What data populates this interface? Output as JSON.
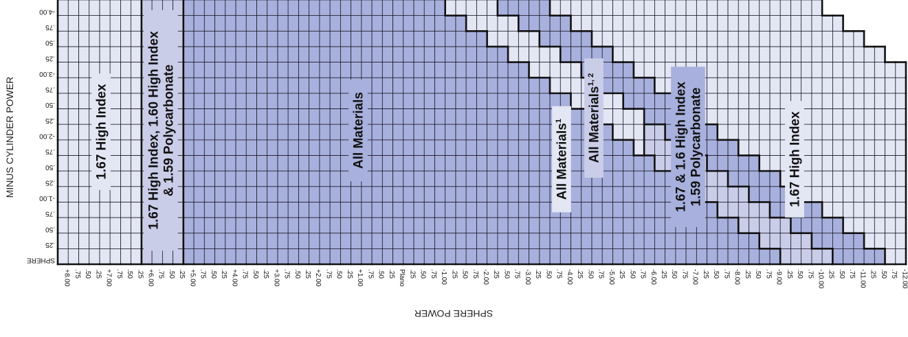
{
  "chart_data": {
    "type": "heatmap",
    "title": "",
    "xlabel": "SPHERE POWER",
    "ylabel": "MINUS CYLINDER POWER",
    "x_ticks": [
      "+8.00",
      ".75",
      ".50",
      ".25",
      "+7.00",
      ".75",
      ".50",
      ".25",
      "+6.00",
      ".75",
      ".50",
      ".25",
      "+5.00",
      ".75",
      ".50",
      ".25",
      "+4.00",
      ".75",
      ".50",
      ".25",
      "+3.00",
      ".75",
      ".50",
      ".25",
      "+2.00",
      ".75",
      ".50",
      ".25",
      "+1.00",
      ".75",
      ".50",
      ".25",
      "Plano",
      ".25",
      ".50",
      ".75",
      "-1.00",
      ".25",
      ".50",
      ".75",
      "-2.00",
      ".25",
      ".50",
      ".75",
      "-3.00",
      ".25",
      ".50",
      ".75",
      "-4.00",
      ".25",
      ".50",
      ".75",
      "-5.00",
      ".25",
      ".50",
      ".75",
      "-6.00",
      ".25",
      ".50",
      ".75",
      "-7.00",
      ".25",
      ".50",
      ".75",
      "-8.00",
      ".25",
      ".50",
      ".75",
      "-9.00",
      ".25",
      ".50",
      ".75",
      "-10.00",
      ".25",
      ".50",
      ".75",
      "-11.00",
      ".25",
      ".50",
      ".75",
      "-12.00"
    ],
    "y_ticks": [
      "SPHERE",
      ".25",
      ".50",
      ".75",
      "-1.00",
      ".25",
      ".50",
      ".75",
      "-2.00",
      ".25",
      ".50",
      ".75",
      "-3.00",
      ".25",
      ".50",
      ".75",
      "-4.00"
    ],
    "sphere_range": [
      8.0,
      -12.0
    ],
    "cylinder_range": [
      0.0,
      -4.0
    ],
    "step": 0.25,
    "regions": [
      {
        "id": "r1",
        "label": "1.67 High Index",
        "sphere_from": 8.0,
        "sphere_to": 6.25,
        "color": "#e3e6f3"
      },
      {
        "id": "r2",
        "label": "1.67 High Index, 1.60 High Index & 1.59 Polycarbonate",
        "label_lines": [
          "1.67 High Index, 1.60 High Index",
          "& 1.59 Polycarbonate"
        ],
        "sphere_from": 6.0,
        "sphere_to": 5.25,
        "color": "#c9cde8"
      },
      {
        "id": "r3",
        "label": "All Materials",
        "sphere_from": 5.0,
        "color": "#a8b0dd"
      },
      {
        "id": "r4",
        "label": "All Materials",
        "sup": "1",
        "color": "#e3e6f3"
      },
      {
        "id": "r5",
        "label": "All Materials",
        "sup": "1, 2",
        "color": "#c9cde8"
      },
      {
        "id": "r6",
        "label": "1.67 & 1.6 High Index 1.59 Polycarbonate",
        "label_lines": [
          "1.67 & 1.6 High Index",
          "1.59 Polycarbonate"
        ],
        "color": "#a8b0dd"
      },
      {
        "id": "r7",
        "label": "1.67 High Index",
        "color": "#e3e6f3"
      }
    ],
    "region_max_sphere_index": {
      "r3": [
        68,
        66,
        64,
        62,
        60,
        58,
        56,
        54,
        52,
        50,
        48,
        46,
        44,
        42,
        40,
        38,
        36
      ],
      "r4": [
        73,
        71,
        69,
        67,
        65,
        63,
        61,
        59,
        57,
        55,
        53,
        51,
        49,
        47,
        45,
        43,
        41
      ],
      "r5": [
        73,
        71,
        69,
        67,
        65,
        63,
        61,
        59,
        57,
        55,
        53,
        51,
        49,
        47,
        45,
        43,
        41
      ],
      "r6": [
        78,
        76,
        74,
        72,
        70,
        68,
        66,
        64,
        62,
        60,
        58,
        56,
        54,
        52,
        50,
        48,
        46
      ],
      "r7": [
        80,
        80,
        80,
        80,
        80,
        80,
        80,
        80,
        80,
        80,
        80,
        80,
        80,
        78,
        76,
        74,
        72
      ]
    },
    "grid": true,
    "legend": "none"
  }
}
